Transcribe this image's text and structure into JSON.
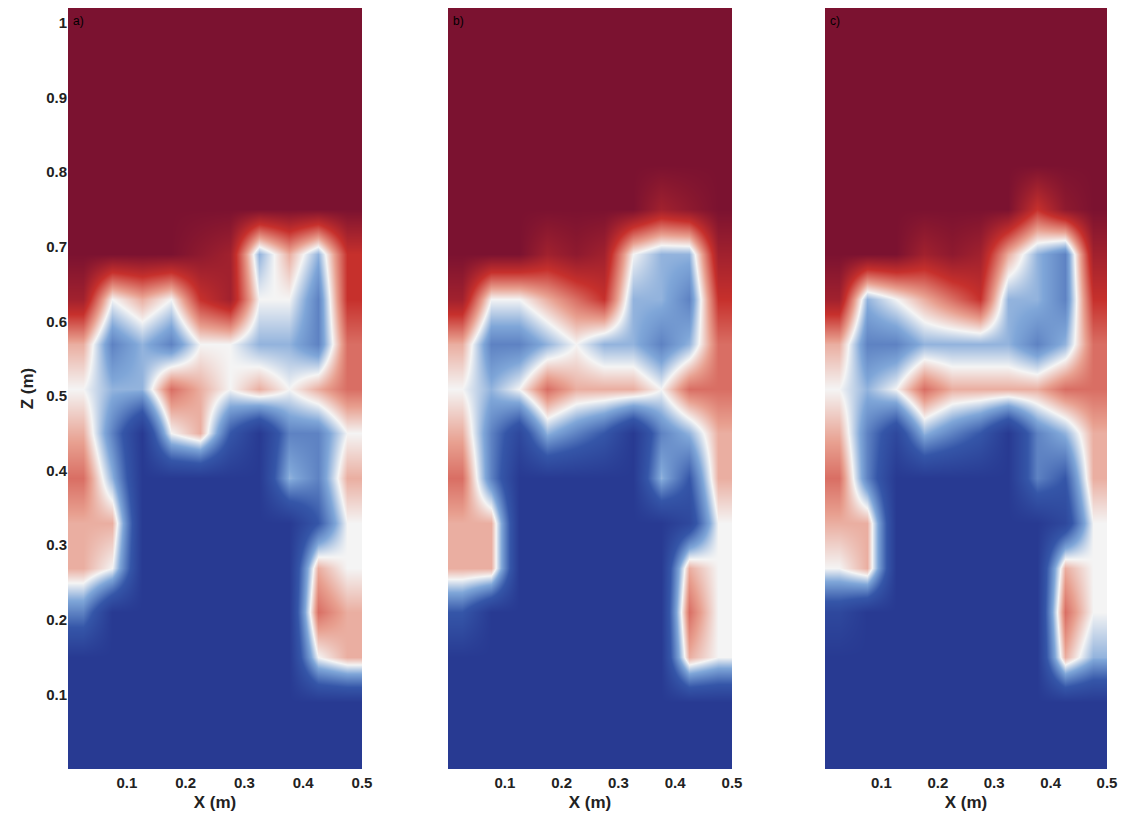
{
  "chart_data": [
    {
      "type": "heatmap",
      "title": "a)",
      "xlabel": "X (m)",
      "ylabel": "Z (m)",
      "xlim": [
        0,
        0.5
      ],
      "ylim": [
        0,
        1.02
      ],
      "xticks": [
        0.1,
        0.2,
        0.3,
        0.4,
        0.5
      ],
      "yticks": [
        0.1,
        0.2,
        0.3,
        0.4,
        0.5,
        0.6,
        0.7,
        0.8,
        0.9,
        1
      ],
      "zlim": [
        0,
        1
      ],
      "x": [
        0.025,
        0.075,
        0.125,
        0.175,
        0.225,
        0.275,
        0.325,
        0.375,
        0.425,
        0.475
      ],
      "y": [
        0.03,
        0.09,
        0.15,
        0.21,
        0.27,
        0.33,
        0.39,
        0.45,
        0.51,
        0.57,
        0.63,
        0.69,
        0.75,
        0.81,
        0.87,
        0.93,
        0.99
      ],
      "z": [
        [
          0,
          0,
          0,
          0,
          0,
          0,
          0,
          0,
          0,
          0
        ],
        [
          0,
          0,
          0,
          0,
          0,
          0,
          0,
          0,
          0,
          0
        ],
        [
          0,
          0,
          0,
          0,
          0,
          0,
          0,
          0,
          0.5,
          0.6
        ],
        [
          0.3,
          0,
          0,
          0,
          0,
          0,
          0,
          0,
          0.7,
          0.6
        ],
        [
          0.6,
          0.5,
          0,
          0,
          0,
          0,
          0,
          0,
          0.6,
          0.5
        ],
        [
          0.6,
          0.6,
          0,
          0,
          0,
          0,
          0,
          0,
          0.2,
          0.5
        ],
        [
          0.7,
          0.4,
          0,
          0,
          0,
          0,
          0,
          0.4,
          0.3,
          0.6
        ],
        [
          0.6,
          0.3,
          0,
          0.5,
          0.6,
          0.2,
          0,
          0.3,
          0.3,
          0.5
        ],
        [
          0.5,
          0.4,
          0.4,
          0.7,
          0.6,
          0.5,
          0.6,
          0.5,
          0.6,
          0.7
        ],
        [
          0.6,
          0.3,
          0.4,
          0.3,
          0.5,
          0.5,
          0.4,
          0.4,
          0.3,
          0.7
        ],
        [
          0.9,
          0.5,
          0.6,
          0.5,
          0.8,
          0.9,
          0.5,
          0.5,
          0.3,
          0.8
        ],
        [
          1,
          1,
          1,
          1,
          0.95,
          0.9,
          0.4,
          0.6,
          0.4,
          0.8
        ],
        [
          1,
          1,
          1,
          1,
          1,
          1,
          1,
          1,
          1,
          1
        ],
        [
          1,
          1,
          1,
          1,
          1,
          1,
          1,
          1,
          1,
          1
        ],
        [
          1,
          1,
          1,
          1,
          1,
          1,
          1,
          1,
          1,
          1
        ],
        [
          1,
          1,
          1,
          1,
          1,
          1,
          1,
          1,
          1,
          1
        ],
        [
          1,
          1,
          1,
          1,
          1,
          1,
          1,
          1,
          1,
          1
        ]
      ]
    },
    {
      "type": "heatmap",
      "title": "b)",
      "xlabel": "X (m)",
      "tick_labels": "x",
      "xlim": [
        0,
        0.5
      ],
      "ylim": [
        0,
        1.02
      ],
      "xticks": [
        0.1,
        0.2,
        0.3,
        0.4,
        0.5
      ],
      "zlim": [
        0,
        1
      ],
      "x": [
        0.025,
        0.075,
        0.125,
        0.175,
        0.225,
        0.275,
        0.325,
        0.375,
        0.425,
        0.475
      ],
      "y": [
        0.03,
        0.09,
        0.15,
        0.21,
        0.27,
        0.33,
        0.39,
        0.45,
        0.51,
        0.57,
        0.63,
        0.69,
        0.75,
        0.81,
        0.87,
        0.93,
        0.99
      ],
      "z": [
        [
          0,
          0,
          0,
          0,
          0,
          0,
          0,
          0,
          0,
          0
        ],
        [
          0,
          0,
          0,
          0,
          0,
          0,
          0,
          0,
          0,
          0
        ],
        [
          0,
          0,
          0,
          0,
          0,
          0,
          0,
          0,
          0.6,
          0.5
        ],
        [
          0.2,
          0,
          0,
          0,
          0,
          0,
          0,
          0,
          0.7,
          0.5
        ],
        [
          0.6,
          0.6,
          0,
          0,
          0,
          0,
          0,
          0,
          0.6,
          0.5
        ],
        [
          0.6,
          0.6,
          0,
          0,
          0,
          0,
          0,
          0,
          0.1,
          0.5
        ],
        [
          0.7,
          0.3,
          0,
          0,
          0,
          0,
          0,
          0.4,
          0.2,
          0.6
        ],
        [
          0.6,
          0.3,
          0.1,
          0.4,
          0.3,
          0.2,
          0,
          0.3,
          0.4,
          0.6
        ],
        [
          0.5,
          0.4,
          0.5,
          0.7,
          0.6,
          0.6,
          0.6,
          0.5,
          0.7,
          0.7
        ],
        [
          0.6,
          0.3,
          0.3,
          0.4,
          0.5,
          0.4,
          0.4,
          0.3,
          0.4,
          0.7
        ],
        [
          0.9,
          0.5,
          0.5,
          0.6,
          0.7,
          0.8,
          0.4,
          0.4,
          0.3,
          0.8
        ],
        [
          1,
          1,
          1,
          0.9,
          0.95,
          0.9,
          0.5,
          0.4,
          0.4,
          0.9
        ],
        [
          1,
          1,
          1,
          1,
          1,
          1,
          1,
          0.9,
          0.95,
          1
        ],
        [
          1,
          1,
          1,
          1,
          1,
          1,
          1,
          1,
          1,
          1
        ],
        [
          1,
          1,
          1,
          1,
          1,
          1,
          1,
          1,
          1,
          1
        ],
        [
          1,
          1,
          1,
          1,
          1,
          1,
          1,
          1,
          1,
          1
        ],
        [
          1,
          1,
          1,
          1,
          1,
          1,
          1,
          1,
          1,
          1
        ]
      ]
    },
    {
      "type": "heatmap",
      "title": "c)",
      "xlabel": "X (m)",
      "tick_labels": "x",
      "xlim": [
        0,
        0.5
      ],
      "ylim": [
        0,
        1.02
      ],
      "xticks": [
        0.1,
        0.2,
        0.3,
        0.4,
        0.5
      ],
      "zlim": [
        0,
        1
      ],
      "x": [
        0.025,
        0.075,
        0.125,
        0.175,
        0.225,
        0.275,
        0.325,
        0.375,
        0.425,
        0.475
      ],
      "y": [
        0.03,
        0.09,
        0.15,
        0.21,
        0.27,
        0.33,
        0.39,
        0.45,
        0.51,
        0.57,
        0.63,
        0.69,
        0.75,
        0.81,
        0.87,
        0.93,
        0.99
      ],
      "z": [
        [
          0,
          0,
          0,
          0,
          0,
          0,
          0,
          0,
          0,
          0
        ],
        [
          0,
          0,
          0,
          0,
          0,
          0,
          0,
          0,
          0,
          0
        ],
        [
          0,
          0,
          0,
          0,
          0,
          0,
          0,
          0,
          0.6,
          0.4
        ],
        [
          0.1,
          0,
          0,
          0,
          0,
          0,
          0,
          0,
          0.7,
          0.5
        ],
        [
          0.5,
          0.6,
          0,
          0,
          0,
          0,
          0,
          0,
          0.6,
          0.5
        ],
        [
          0.6,
          0.6,
          0,
          0,
          0,
          0,
          0,
          0,
          0.1,
          0.5
        ],
        [
          0.7,
          0.3,
          0,
          0,
          0,
          0,
          0,
          0.3,
          0.2,
          0.6
        ],
        [
          0.6,
          0.3,
          0.1,
          0.4,
          0.3,
          0.2,
          0,
          0.3,
          0.4,
          0.6
        ],
        [
          0.5,
          0.4,
          0.5,
          0.7,
          0.6,
          0.6,
          0.6,
          0.6,
          0.7,
          0.7
        ],
        [
          0.6,
          0.3,
          0.3,
          0.4,
          0.4,
          0.4,
          0.4,
          0.3,
          0.4,
          0.7
        ],
        [
          0.9,
          0.4,
          0.5,
          0.6,
          0.7,
          0.8,
          0.4,
          0.4,
          0.3,
          0.8
        ],
        [
          1,
          1,
          1,
          0.9,
          0.95,
          0.9,
          0.6,
          0.4,
          0.3,
          0.9
        ],
        [
          1,
          1,
          1,
          1,
          1,
          1,
          1,
          0.8,
          0.95,
          1
        ],
        [
          1,
          1,
          1,
          1,
          1,
          1,
          1,
          1,
          1,
          1
        ],
        [
          1,
          1,
          1,
          1,
          1,
          1,
          1,
          1,
          1,
          1
        ],
        [
          1,
          1,
          1,
          1,
          1,
          1,
          1,
          1,
          1,
          1
        ],
        [
          1,
          1,
          1,
          1,
          1,
          1,
          1,
          1,
          1,
          1
        ]
      ]
    }
  ]
}
